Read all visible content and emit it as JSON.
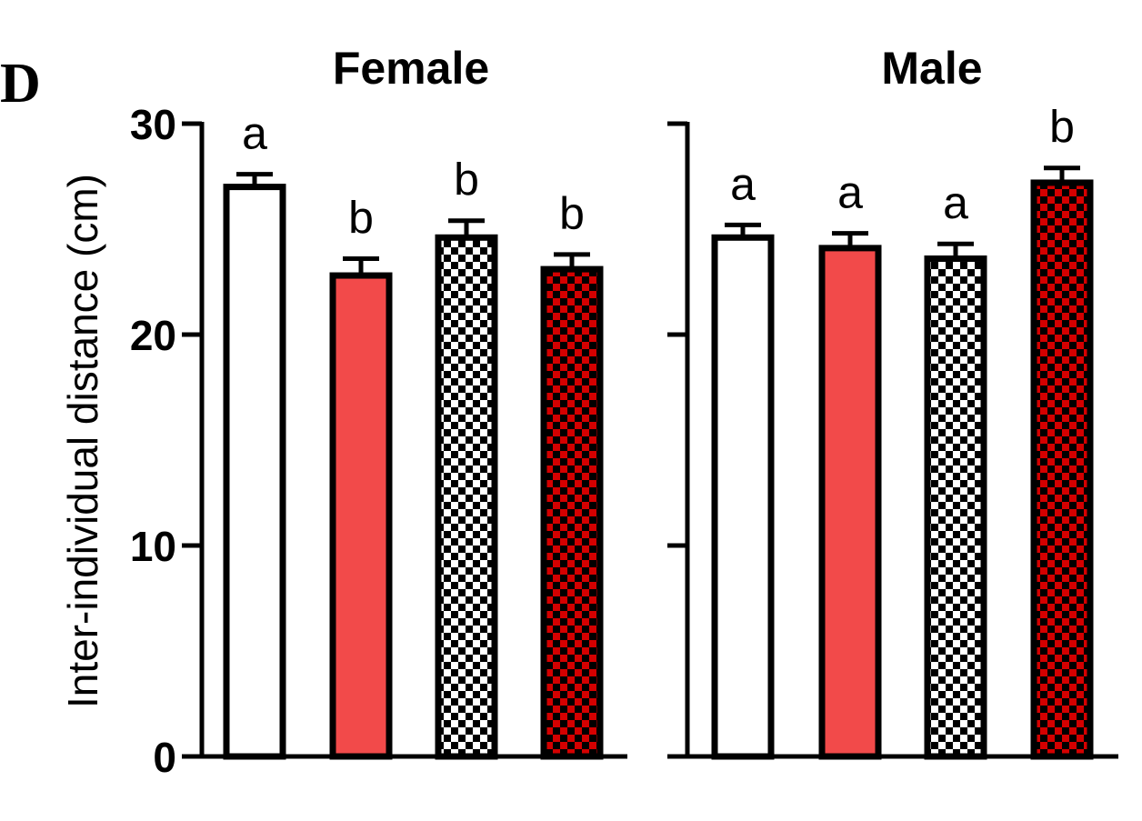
{
  "panel_label": "D",
  "chart_data": {
    "type": "bar",
    "ylabel": "Inter-individual distance (cm)",
    "ylim": [
      0,
      30
    ],
    "yticks": [
      0,
      10,
      20,
      30
    ],
    "grid": false,
    "legend": "none",
    "fills": [
      "#ffffff",
      "#f24a4a",
      "checker-black",
      "checker-red"
    ],
    "colors": {
      "red": "#f24a4a",
      "dark_red": "#d40000",
      "black": "#000000"
    },
    "panels": [
      {
        "title": "Female",
        "values": [
          27.0,
          22.8,
          24.6,
          23.1
        ],
        "errors": [
          0.6,
          0.8,
          0.8,
          0.7
        ],
        "letters": [
          "a",
          "b",
          "b",
          "b"
        ]
      },
      {
        "title": "Male",
        "values": [
          24.6,
          24.1,
          23.6,
          27.2
        ],
        "errors": [
          0.6,
          0.7,
          0.7,
          0.7
        ],
        "letters": [
          "a",
          "a",
          "a",
          "b"
        ]
      }
    ]
  }
}
